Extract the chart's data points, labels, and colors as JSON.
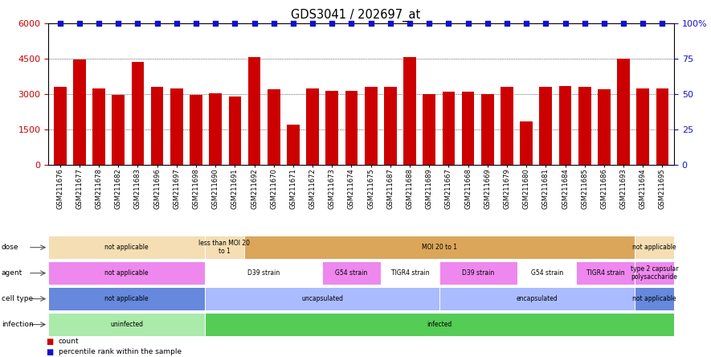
{
  "title": "GDS3041 / 202697_at",
  "samples": [
    "GSM211676",
    "GSM211677",
    "GSM211678",
    "GSM211682",
    "GSM211683",
    "GSM211696",
    "GSM211697",
    "GSM211698",
    "GSM211690",
    "GSM211691",
    "GSM211692",
    "GSM211670",
    "GSM211671",
    "GSM211672",
    "GSM211673",
    "GSM211674",
    "GSM211675",
    "GSM211687",
    "GSM211688",
    "GSM211689",
    "GSM211667",
    "GSM211668",
    "GSM211669",
    "GSM211679",
    "GSM211680",
    "GSM211681",
    "GSM211684",
    "GSM211685",
    "GSM211686",
    "GSM211693",
    "GSM211694",
    "GSM211695"
  ],
  "counts": [
    3300,
    4450,
    3250,
    2950,
    4350,
    3300,
    3250,
    2950,
    3050,
    2900,
    4550,
    3200,
    1700,
    3250,
    3150,
    3150,
    3300,
    3300,
    4550,
    3000,
    3100,
    3100,
    3000,
    3300,
    1850,
    3300,
    3350,
    3300,
    3200,
    4500,
    3250,
    3250
  ],
  "bar_color": "#cc0000",
  "dot_color": "#1111cc",
  "ylim_left": [
    0,
    6000
  ],
  "ylim_right": [
    0,
    100
  ],
  "yticks_left": [
    0,
    1500,
    3000,
    4500,
    6000
  ],
  "ytick_labels_left": [
    "0",
    "1500",
    "3000",
    "4500",
    "6000"
  ],
  "yticks_right": [
    0,
    25,
    50,
    75,
    100
  ],
  "ytick_labels_right": [
    "0",
    "25",
    "50",
    "75",
    "100%"
  ],
  "hgrid_values": [
    1500,
    3000,
    4500
  ],
  "annotation_rows": [
    {
      "label": "infection",
      "segments": [
        {
          "text": "uninfected",
          "start": 0,
          "end": 8,
          "color": "#aaeaaa",
          "textcolor": "#000000"
        },
        {
          "text": "infected",
          "start": 8,
          "end": 32,
          "color": "#55cc55",
          "textcolor": "#000000"
        }
      ]
    },
    {
      "label": "cell type",
      "segments": [
        {
          "text": "not applicable",
          "start": 0,
          "end": 8,
          "color": "#6688dd",
          "textcolor": "#000000"
        },
        {
          "text": "uncapsulated",
          "start": 8,
          "end": 20,
          "color": "#aabbff",
          "textcolor": "#000000"
        },
        {
          "text": "encapsulated",
          "start": 20,
          "end": 30,
          "color": "#aabbff",
          "textcolor": "#000000"
        },
        {
          "text": "not applicable",
          "start": 30,
          "end": 32,
          "color": "#6688dd",
          "textcolor": "#000000"
        }
      ]
    },
    {
      "label": "agent",
      "segments": [
        {
          "text": "not applicable",
          "start": 0,
          "end": 8,
          "color": "#ee88ee",
          "textcolor": "#000000"
        },
        {
          "text": "D39 strain",
          "start": 8,
          "end": 14,
          "color": "#ffffff",
          "textcolor": "#000000"
        },
        {
          "text": "G54 strain",
          "start": 14,
          "end": 17,
          "color": "#ee88ee",
          "textcolor": "#000000"
        },
        {
          "text": "TIGR4 strain",
          "start": 17,
          "end": 20,
          "color": "#ffffff",
          "textcolor": "#000000"
        },
        {
          "text": "D39 strain",
          "start": 20,
          "end": 24,
          "color": "#ee88ee",
          "textcolor": "#000000"
        },
        {
          "text": "G54 strain",
          "start": 24,
          "end": 27,
          "color": "#ffffff",
          "textcolor": "#000000"
        },
        {
          "text": "TIGR4 strain",
          "start": 27,
          "end": 30,
          "color": "#ee88ee",
          "textcolor": "#000000"
        },
        {
          "text": "type 2 capsular\npolysaccharide",
          "start": 30,
          "end": 32,
          "color": "#ee88ee",
          "textcolor": "#000000"
        }
      ]
    },
    {
      "label": "dose",
      "segments": [
        {
          "text": "not applicable",
          "start": 0,
          "end": 8,
          "color": "#f5deb3",
          "textcolor": "#000000"
        },
        {
          "text": "less than MOI 20\nto 1",
          "start": 8,
          "end": 10,
          "color": "#f5deb3",
          "textcolor": "#000000"
        },
        {
          "text": "MOI 20 to 1",
          "start": 10,
          "end": 30,
          "color": "#dba65a",
          "textcolor": "#000000"
        },
        {
          "text": "not applicable",
          "start": 30,
          "end": 32,
          "color": "#f5deb3",
          "textcolor": "#000000"
        }
      ]
    }
  ],
  "legend_items": [
    {
      "label": "count",
      "color": "#cc0000"
    },
    {
      "label": "percentile rank within the sample",
      "color": "#1111cc"
    }
  ]
}
